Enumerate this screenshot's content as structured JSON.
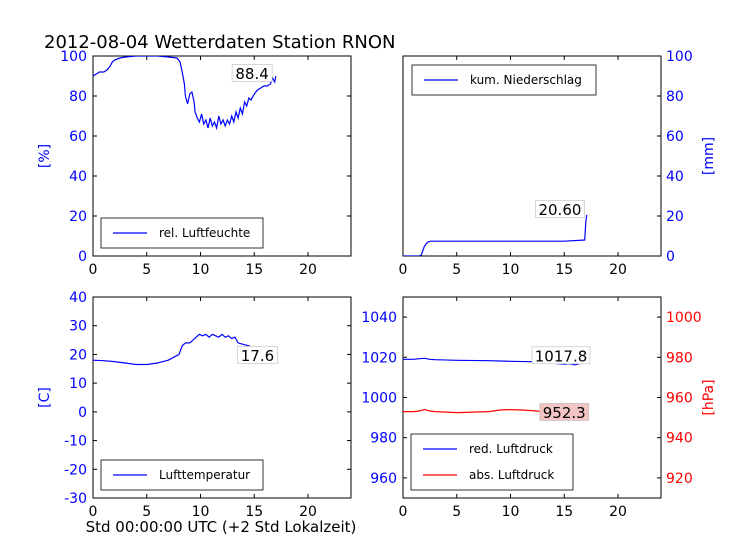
{
  "title": "2012-08-04 Wetterdaten Station RNON",
  "xlabel": "Std 00:00:00 UTC (+2 Std Lokalzeit)",
  "colors": {
    "blue": "#0000ff",
    "red": "#ff0000",
    "annot_red_bg": "#f2c4c4"
  },
  "chart_data": [
    {
      "type": "line",
      "id": "humidity",
      "ylabel": "[%]",
      "ylabel_color": "#0000ff",
      "xlim": [
        0,
        24
      ],
      "ylim": [
        0,
        100
      ],
      "xticks": [
        0,
        5,
        10,
        15,
        20
      ],
      "yticks": [
        0,
        20,
        40,
        60,
        80,
        100
      ],
      "tick_color": "#0000ff",
      "y_axis_side": "left",
      "legend": {
        "placement": "lower-left",
        "entries": [
          {
            "name": "rel. Luftfeuchte",
            "color": "#0000ff"
          }
        ]
      },
      "annotation": {
        "text": "88.4",
        "x": 14.8,
        "y": 91,
        "bg": "#ffffff"
      },
      "series": [
        {
          "name": "rel. Luftfeuchte",
          "color": "#0000ff",
          "x": [
            0,
            0.3,
            0.6,
            1.0,
            1.3,
            1.6,
            1.8,
            2.0,
            2.5,
            3.0,
            4.0,
            5.0,
            6.0,
            7.0,
            7.8,
            8.1,
            8.3,
            8.5,
            8.6,
            8.8,
            9.0,
            9.2,
            9.4,
            9.5,
            9.7,
            9.9,
            10.1,
            10.3,
            10.5,
            10.7,
            10.9,
            11.1,
            11.3,
            11.5,
            11.7,
            11.9,
            12.1,
            12.3,
            12.5,
            12.7,
            12.9,
            13.1,
            13.3,
            13.5,
            13.7,
            13.9,
            14.1,
            14.3,
            14.5,
            14.7,
            15.0,
            15.3,
            15.6,
            15.9,
            16.2,
            16.5,
            16.7,
            16.9,
            17.0
          ],
          "values": [
            90,
            91,
            92,
            92,
            93,
            95,
            97,
            98,
            99,
            99.5,
            100,
            100,
            100,
            99.5,
            99,
            97,
            92,
            86,
            80,
            76,
            81,
            82,
            77,
            72,
            69,
            67,
            71,
            66,
            68,
            64,
            69,
            65,
            67,
            64,
            70,
            66,
            68,
            65,
            68,
            66,
            70,
            67,
            72,
            69,
            74,
            71,
            77,
            75,
            79,
            78,
            81,
            83,
            84,
            85,
            85,
            86,
            89,
            87,
            90
          ]
        }
      ]
    },
    {
      "type": "line",
      "id": "precip",
      "ylabel": "[mm]",
      "ylabel_color": "#0000ff",
      "xlim": [
        0,
        24
      ],
      "ylim": [
        0,
        100
      ],
      "xticks": [
        0,
        5,
        10,
        15,
        20
      ],
      "yticks": [
        0,
        20,
        40,
        60,
        80,
        100
      ],
      "tick_color": "#0000ff",
      "y_axis_side": "right",
      "legend": {
        "placement": "upper-left",
        "entries": [
          {
            "name": "kum. Niederschlag",
            "color": "#0000ff"
          }
        ]
      },
      "annotation": {
        "text": "20.60",
        "x": 14.6,
        "y": 23,
        "bg": "#ffffff"
      },
      "series": [
        {
          "name": "kum. Niederschlag",
          "color": "#0000ff",
          "x": [
            0,
            1.5,
            1.7,
            2.0,
            2.3,
            2.6,
            5,
            10,
            15,
            16.9,
            17.0,
            17.1
          ],
          "values": [
            0,
            0,
            0.5,
            5,
            7,
            7.4,
            7.4,
            7.4,
            7.4,
            8,
            17,
            20.6
          ]
        }
      ]
    },
    {
      "type": "line",
      "id": "temperature",
      "ylabel": "[C]",
      "ylabel_color": "#0000ff",
      "xlim": [
        0,
        24
      ],
      "ylim": [
        -30,
        40
      ],
      "xticks": [
        0,
        5,
        10,
        15,
        20
      ],
      "yticks": [
        -30,
        -20,
        -10,
        0,
        10,
        20,
        30,
        40
      ],
      "tick_color": "#0000ff",
      "y_axis_side": "left",
      "legend": {
        "placement": "lower-left",
        "entries": [
          {
            "name": "Lufttemperatur",
            "color": "#0000ff"
          }
        ]
      },
      "annotation": {
        "text": "17.6",
        "x": 15.3,
        "y": 19.5,
        "bg": "#ffffff"
      },
      "series": [
        {
          "name": "Lufttemperatur",
          "color": "#0000ff",
          "x": [
            0,
            1,
            2,
            3,
            4,
            5,
            6,
            7,
            7.5,
            8,
            8.3,
            8.6,
            9.0,
            9.3,
            9.6,
            9.9,
            10.2,
            10.5,
            10.8,
            11.1,
            11.4,
            11.7,
            12.0,
            12.3,
            12.6,
            12.9,
            13.2,
            13.5,
            14.0,
            14.5,
            15.0,
            15.5,
            16.0,
            16.5,
            17.0
          ],
          "values": [
            18,
            17.8,
            17.5,
            17,
            16.5,
            16.5,
            17,
            18,
            19,
            20,
            23,
            24,
            24,
            25,
            26,
            27,
            26.5,
            27,
            26,
            27,
            26.5,
            26,
            27,
            26,
            26.5,
            25.5,
            26,
            24,
            23.5,
            23,
            22,
            21.5,
            21,
            20.5,
            20
          ]
        }
      ]
    },
    {
      "type": "line",
      "id": "pressure",
      "ylabel": "[hPa]",
      "ylabel_color": "#ff0000",
      "xlim": [
        0,
        24
      ],
      "ylim": [
        950,
        1050
      ],
      "ylim_right": [
        910,
        1010
      ],
      "xticks": [
        0,
        5,
        10,
        15,
        20
      ],
      "yticks": [
        960,
        980,
        1000,
        1020,
        1040
      ],
      "yticks_right": [
        920,
        940,
        960,
        980,
        1000
      ],
      "tick_color": "#0000ff",
      "tick_color_right": "#ff0000",
      "y_axis_side": "both",
      "legend": {
        "placement": "lower-left",
        "entries": [
          {
            "name": "red. Luftdruck",
            "color": "#0000ff"
          },
          {
            "name": "abs. Luftdruck",
            "color": "#ff0000"
          }
        ]
      },
      "annotations": [
        {
          "text": "1017.8",
          "x": 14.7,
          "y": 1020.5,
          "bg": "#ffffff"
        },
        {
          "text": "952.3",
          "x": 15.0,
          "y": 952.3,
          "axis": "right",
          "bg": "#f2c4c4"
        }
      ],
      "series": [
        {
          "name": "red. Luftdruck",
          "color": "#0000ff",
          "axis": "left",
          "x": [
            0,
            1,
            1.5,
            2,
            2.5,
            3,
            5,
            8,
            10,
            12,
            13,
            14,
            15,
            15.5,
            16,
            16.5,
            17
          ],
          "values": [
            1019,
            1019,
            1019.3,
            1019.5,
            1019,
            1018.8,
            1018.5,
            1018.3,
            1018,
            1017.8,
            1017.3,
            1017,
            1016.5,
            1016.8,
            1016.2,
            1017,
            1017.8
          ]
        },
        {
          "name": "abs. Luftdruck",
          "color": "#ff0000",
          "axis": "right",
          "x": [
            0,
            1,
            1.5,
            2,
            2.5,
            3,
            5,
            8,
            9,
            10,
            11,
            12,
            13,
            14,
            15,
            15.5,
            16,
            16.5,
            17
          ],
          "values": [
            953,
            953,
            953.3,
            954,
            953.3,
            953,
            952.5,
            953,
            953.8,
            954,
            953.8,
            953.5,
            953,
            952.5,
            951.5,
            951.5,
            951,
            951.8,
            952.3
          ]
        }
      ]
    }
  ]
}
